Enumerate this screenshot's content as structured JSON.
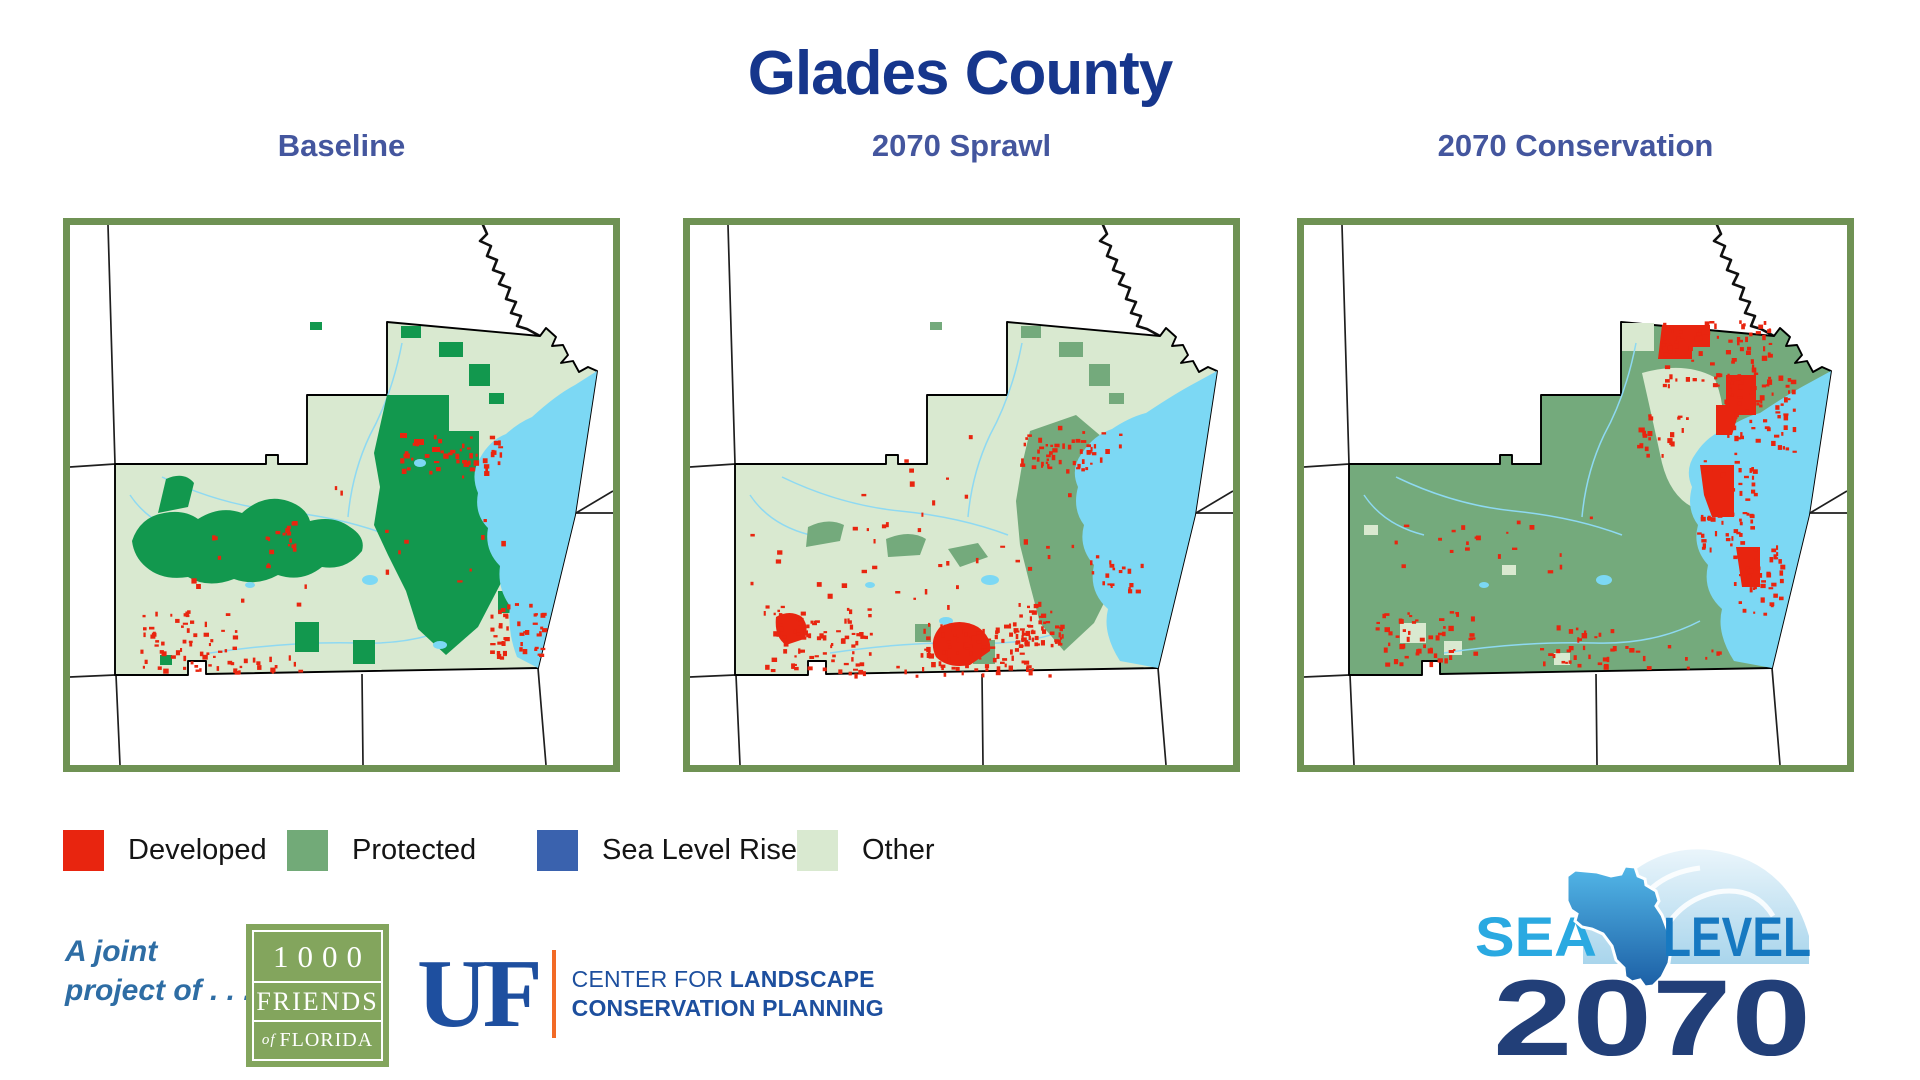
{
  "title": "Glades County",
  "panels": [
    {
      "title": "Baseline"
    },
    {
      "title": "2070 Sprawl"
    },
    {
      "title": "2070 Conservation"
    }
  ],
  "legend": {
    "items": [
      {
        "label": "Developed",
        "color": "#e8250f"
      },
      {
        "label": "Protected",
        "color": "#72aa78"
      },
      {
        "label": "Sea Level Rise",
        "color": "#3a62ae"
      },
      {
        "label": "Other",
        "color": "#d9e9d0"
      }
    ]
  },
  "map_colors": {
    "other": "#d9e9d0",
    "protected_baseline": "#12984e",
    "protected_future": "#74aa7c",
    "developed": "#e8250f",
    "water": "#7cd8f4",
    "frame_border": "#6f9254",
    "county_outline": "#000000",
    "context_lines": "#1f1f1f"
  },
  "footer": {
    "joint_project_line1": "A joint",
    "joint_project_line2": "project of . . .",
    "friends_logo": {
      "line1": "1000",
      "line2": "FRIENDS",
      "line3_of": "of",
      "line3_name": "FLORIDA"
    },
    "uf_logo": {
      "monogram": "UF",
      "center_for": "CENTER FOR ",
      "landscape": "LANDSCAPE",
      "conservation_planning": "CONSERVATION PLANNING"
    },
    "sea_level_logo": {
      "word1": "SEA",
      "word2": "LEVEL",
      "year": "2070"
    }
  }
}
